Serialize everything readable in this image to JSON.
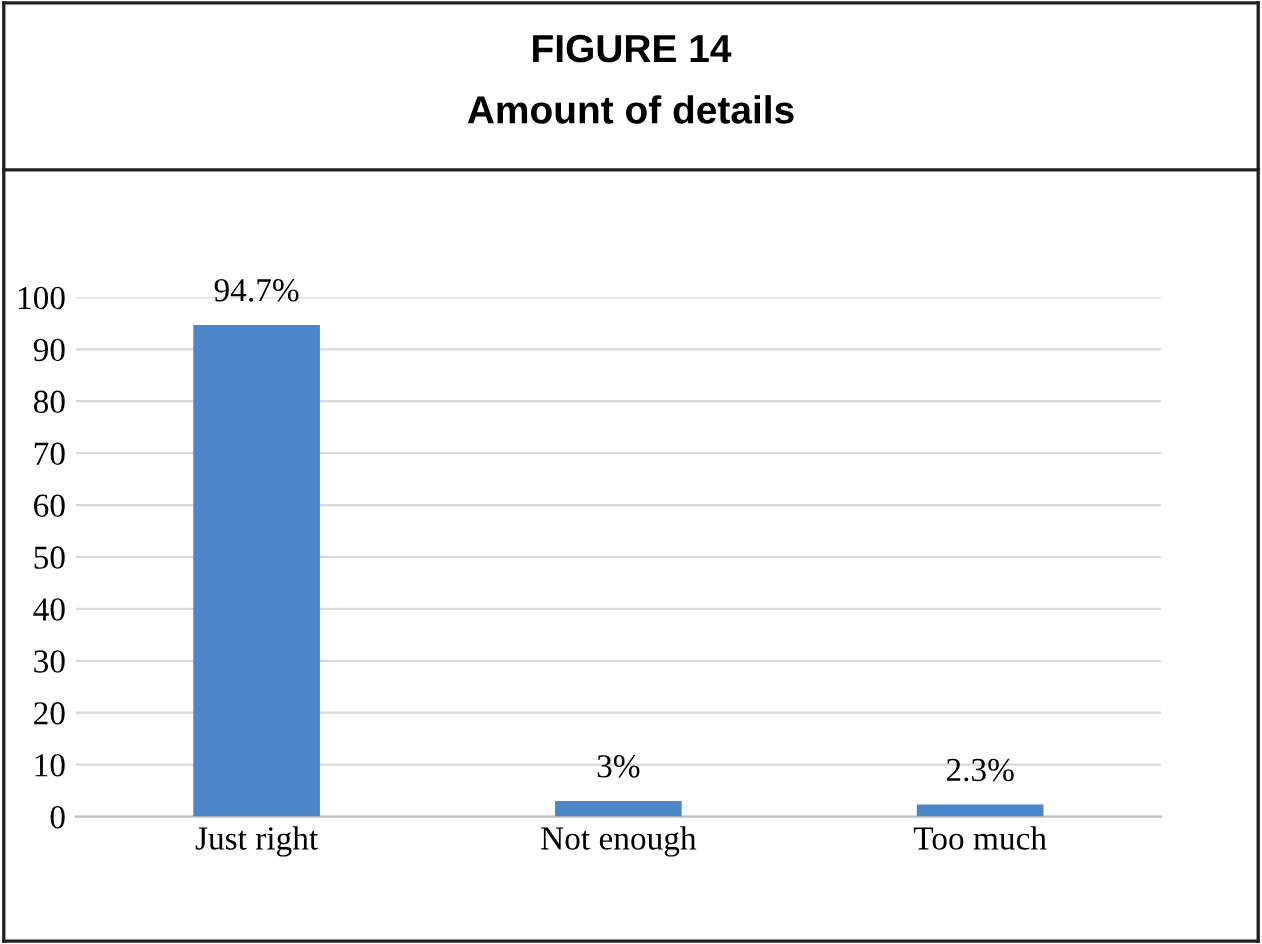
{
  "chart_data": {
    "type": "bar",
    "title": "FIGURE 14",
    "subtitle": "Amount of details",
    "categories": [
      "Just right",
      "Not enough",
      "Too much"
    ],
    "values": [
      94.7,
      3,
      2.3
    ],
    "value_labels": [
      "94.7%",
      "3%",
      "2.3%"
    ],
    "color": "#4a86c8",
    "ylim": [
      0,
      100
    ],
    "yticks": [
      0,
      10,
      20,
      30,
      40,
      50,
      60,
      70,
      80,
      90,
      100
    ],
    "grid": "y"
  }
}
